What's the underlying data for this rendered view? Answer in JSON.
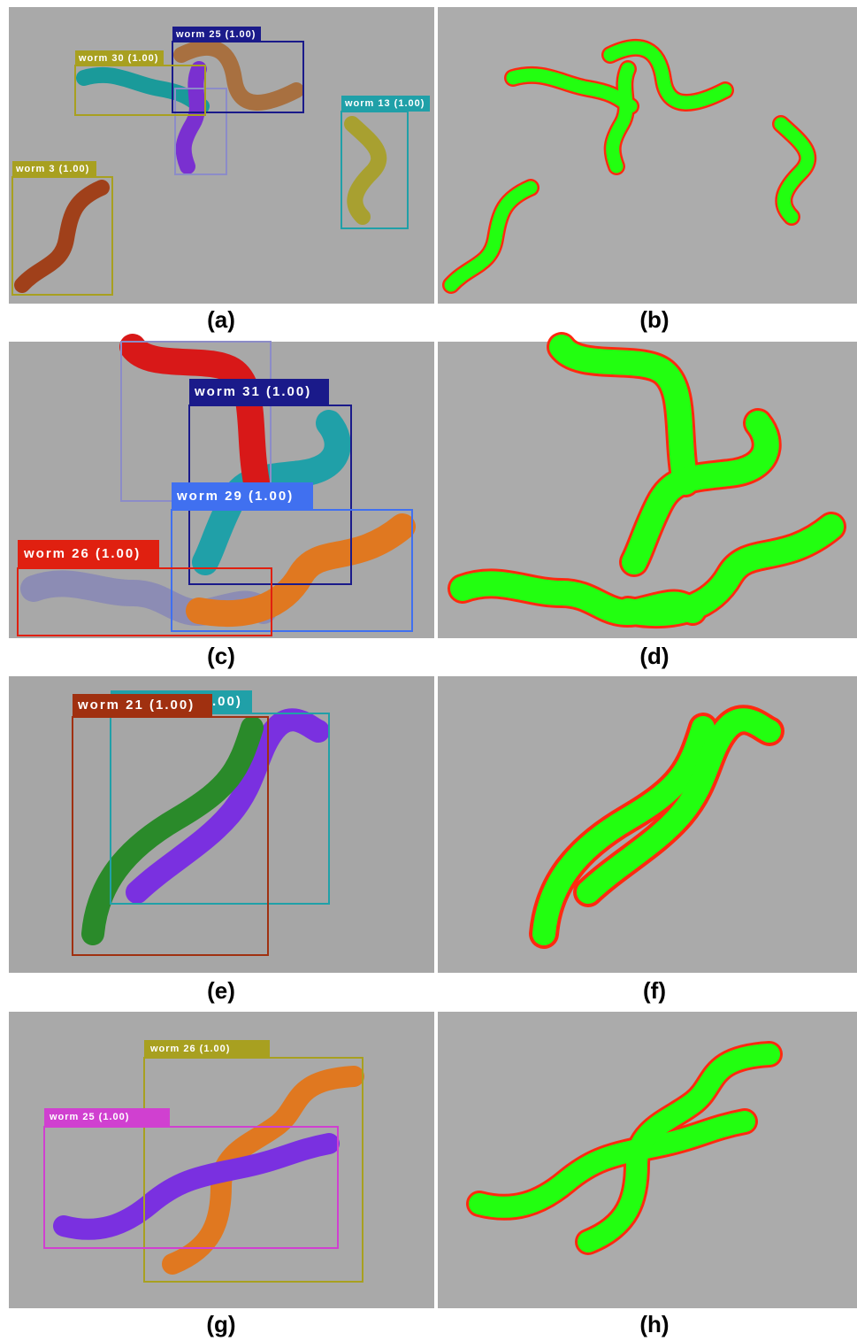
{
  "panels": [
    {
      "caption": "(a)",
      "labels": [
        "worm 25 (1.00)",
        "worm 30 (1.00)",
        "worm 13 (1.00)",
        "worm 3 (1.00)"
      ]
    },
    {
      "caption": "(b)"
    },
    {
      "caption": "(c)",
      "labels": [
        "worm 31 (1.00)",
        "worm 29 (1.00)",
        "worm 26 (1.00)"
      ]
    },
    {
      "caption": "(d)"
    },
    {
      "caption": "(e)",
      "labels": [
        ".00)",
        "worm 21 (1.00)"
      ]
    },
    {
      "caption": "(f)"
    },
    {
      "caption": "(g)",
      "labels": [
        "worm 26 (1.00)",
        "worm 25 (1.00)"
      ]
    },
    {
      "caption": "(h)"
    }
  ]
}
